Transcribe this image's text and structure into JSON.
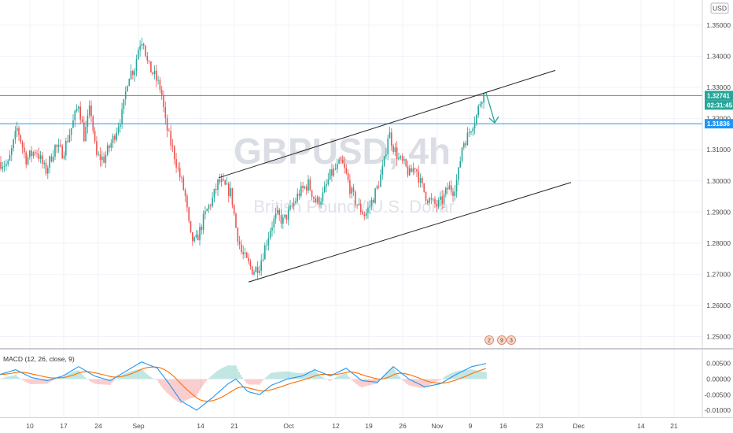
{
  "chart_data": {
    "type": "candlestick",
    "symbol": "GBPUSD, 4h",
    "subtitle": "British Pound / U.S. Dollar",
    "currency": "USD",
    "y_ticks": [
      "1.35000",
      "1.34000",
      "1.33000",
      "1.32000",
      "1.31000",
      "1.30000",
      "1.29000",
      "1.28000",
      "1.27000",
      "1.26000",
      "1.25000"
    ],
    "ylim": [
      1.2465,
      1.3555
    ],
    "x_ticks": [
      "10",
      "17",
      "24",
      "Sep",
      "14",
      "21",
      "Oct",
      "12",
      "19",
      "26",
      "Nov",
      "9",
      "16",
      "23",
      "Dec",
      "14",
      "21"
    ],
    "price_lines": [
      {
        "value": 1.32741,
        "label": "1.32741",
        "color": "#26a69a"
      },
      {
        "value": 1.31836,
        "label": "1.31836",
        "color": "#2196f3"
      }
    ],
    "countdown": "02:31:45",
    "channel_upper": [
      [
        1.301,
        1.3355
      ]
    ],
    "channel_lower": [
      [
        1.2675,
        1.2995
      ]
    ],
    "event_badges": [
      "2",
      "9",
      "3"
    ],
    "macd": {
      "label": "MACD (12, 26, close, 9)",
      "y_ticks": [
        "0.00500",
        "0.00000",
        "-0.00500",
        "-0.01000"
      ],
      "ylim": [
        -0.0113,
        0.0068
      ],
      "macd_color": "#2196f3",
      "signal_color": "#ff6d00"
    },
    "colors": {
      "up": "#26a69a",
      "down": "#ef5350",
      "channel": "#222222",
      "arrow": "#26a69a"
    }
  }
}
